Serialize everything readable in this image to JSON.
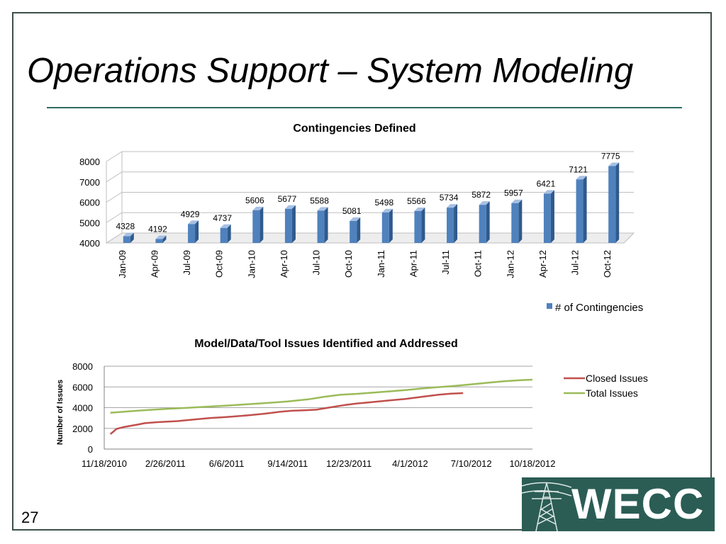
{
  "slide": {
    "title": "Operations Support – System Modeling",
    "page_number": "27",
    "logo_text": "WECC",
    "colors": {
      "frame": "#3c4f4a",
      "rule": "#2f6b61",
      "logo_bg": "#2b5d55",
      "bar": "#4f81bd",
      "closed": "#c0504d",
      "total": "#9bbb59"
    }
  },
  "chart_data": [
    {
      "type": "bar",
      "title": "Contingencies Defined",
      "categories": [
        "Jan-09",
        "Apr-09",
        "Jul-09",
        "Oct-09",
        "Jan-10",
        "Apr-10",
        "Jul-10",
        "Oct-10",
        "Jan-11",
        "Apr-11",
        "Jul-11",
        "Oct-11",
        "Jan-12",
        "Apr-12",
        "Jul-12",
        "Oct-12"
      ],
      "series": [
        {
          "name": "# of Contingencies",
          "values": [
            4328,
            4192,
            4929,
            4737,
            5606,
            5677,
            5588,
            5081,
            5498,
            5566,
            5734,
            5872,
            5957,
            6421,
            7121,
            7775
          ]
        }
      ],
      "ylim": [
        4000,
        8000
      ],
      "yticks": [
        "8000",
        "7000",
        "6000",
        "5000",
        "4000"
      ],
      "data_labels": [
        "4328",
        "4192",
        "4929",
        "4737",
        "5606",
        "5677",
        "5588",
        "5081",
        "5498",
        "5566",
        "5734",
        "5872",
        "5957",
        "6421",
        "7121",
        "7775"
      ],
      "legend": "right"
    },
    {
      "type": "line",
      "title": "Model/Data/Tool Issues Identified and Addressed",
      "ylabel": "Number of Issues",
      "ylim": [
        0,
        8000
      ],
      "yticks": [
        "8000",
        "6000",
        "4000",
        "2000",
        "0"
      ],
      "xticks": [
        "11/18/2010",
        "2/26/2011",
        "6/6/2011",
        "9/14/2011",
        "12/23/2011",
        "4/1/2012",
        "7/10/2012",
        "10/18/2012"
      ],
      "series": [
        {
          "name": "Closed Issues",
          "points": [
            [
              0.15,
              1450
            ],
            [
              0.2,
              1600
            ],
            [
              0.3,
              1950
            ],
            [
              0.5,
              2150
            ],
            [
              0.8,
              2350
            ],
            [
              1.0,
              2500
            ],
            [
              1.3,
              2600
            ],
            [
              1.8,
              2700
            ],
            [
              2.2,
              2850
            ],
            [
              2.6,
              3000
            ],
            [
              3.0,
              3100
            ],
            [
              3.5,
              3250
            ],
            [
              3.9,
              3400
            ],
            [
              4.3,
              3600
            ],
            [
              4.6,
              3700
            ],
            [
              4.9,
              3750
            ],
            [
              5.2,
              3800
            ],
            [
              5.5,
              4000
            ],
            [
              5.9,
              4250
            ],
            [
              6.2,
              4400
            ],
            [
              6.6,
              4550
            ],
            [
              7.0,
              4700
            ],
            [
              7.4,
              4850
            ],
            [
              7.8,
              5050
            ],
            [
              8.2,
              5250
            ],
            [
              8.5,
              5350
            ],
            [
              8.8,
              5400
            ]
          ]
        },
        {
          "name": "Total Issues",
          "points": [
            [
              0.15,
              3500
            ],
            [
              0.4,
              3580
            ],
            [
              0.8,
              3700
            ],
            [
              1.2,
              3800
            ],
            [
              1.6,
              3900
            ],
            [
              2.0,
              3970
            ],
            [
              2.5,
              4080
            ],
            [
              3.0,
              4200
            ],
            [
              3.5,
              4330
            ],
            [
              4.0,
              4450
            ],
            [
              4.5,
              4600
            ],
            [
              5.0,
              4800
            ],
            [
              5.4,
              5050
            ],
            [
              5.8,
              5250
            ],
            [
              6.2,
              5330
            ],
            [
              6.6,
              5450
            ],
            [
              7.0,
              5570
            ],
            [
              7.4,
              5700
            ],
            [
              7.8,
              5850
            ],
            [
              8.2,
              5980
            ],
            [
              8.6,
              6100
            ],
            [
              9.0,
              6250
            ],
            [
              9.4,
              6400
            ],
            [
              9.8,
              6550
            ],
            [
              10.2,
              6650
            ],
            [
              10.5,
              6700
            ]
          ]
        }
      ],
      "legend": "right"
    }
  ]
}
